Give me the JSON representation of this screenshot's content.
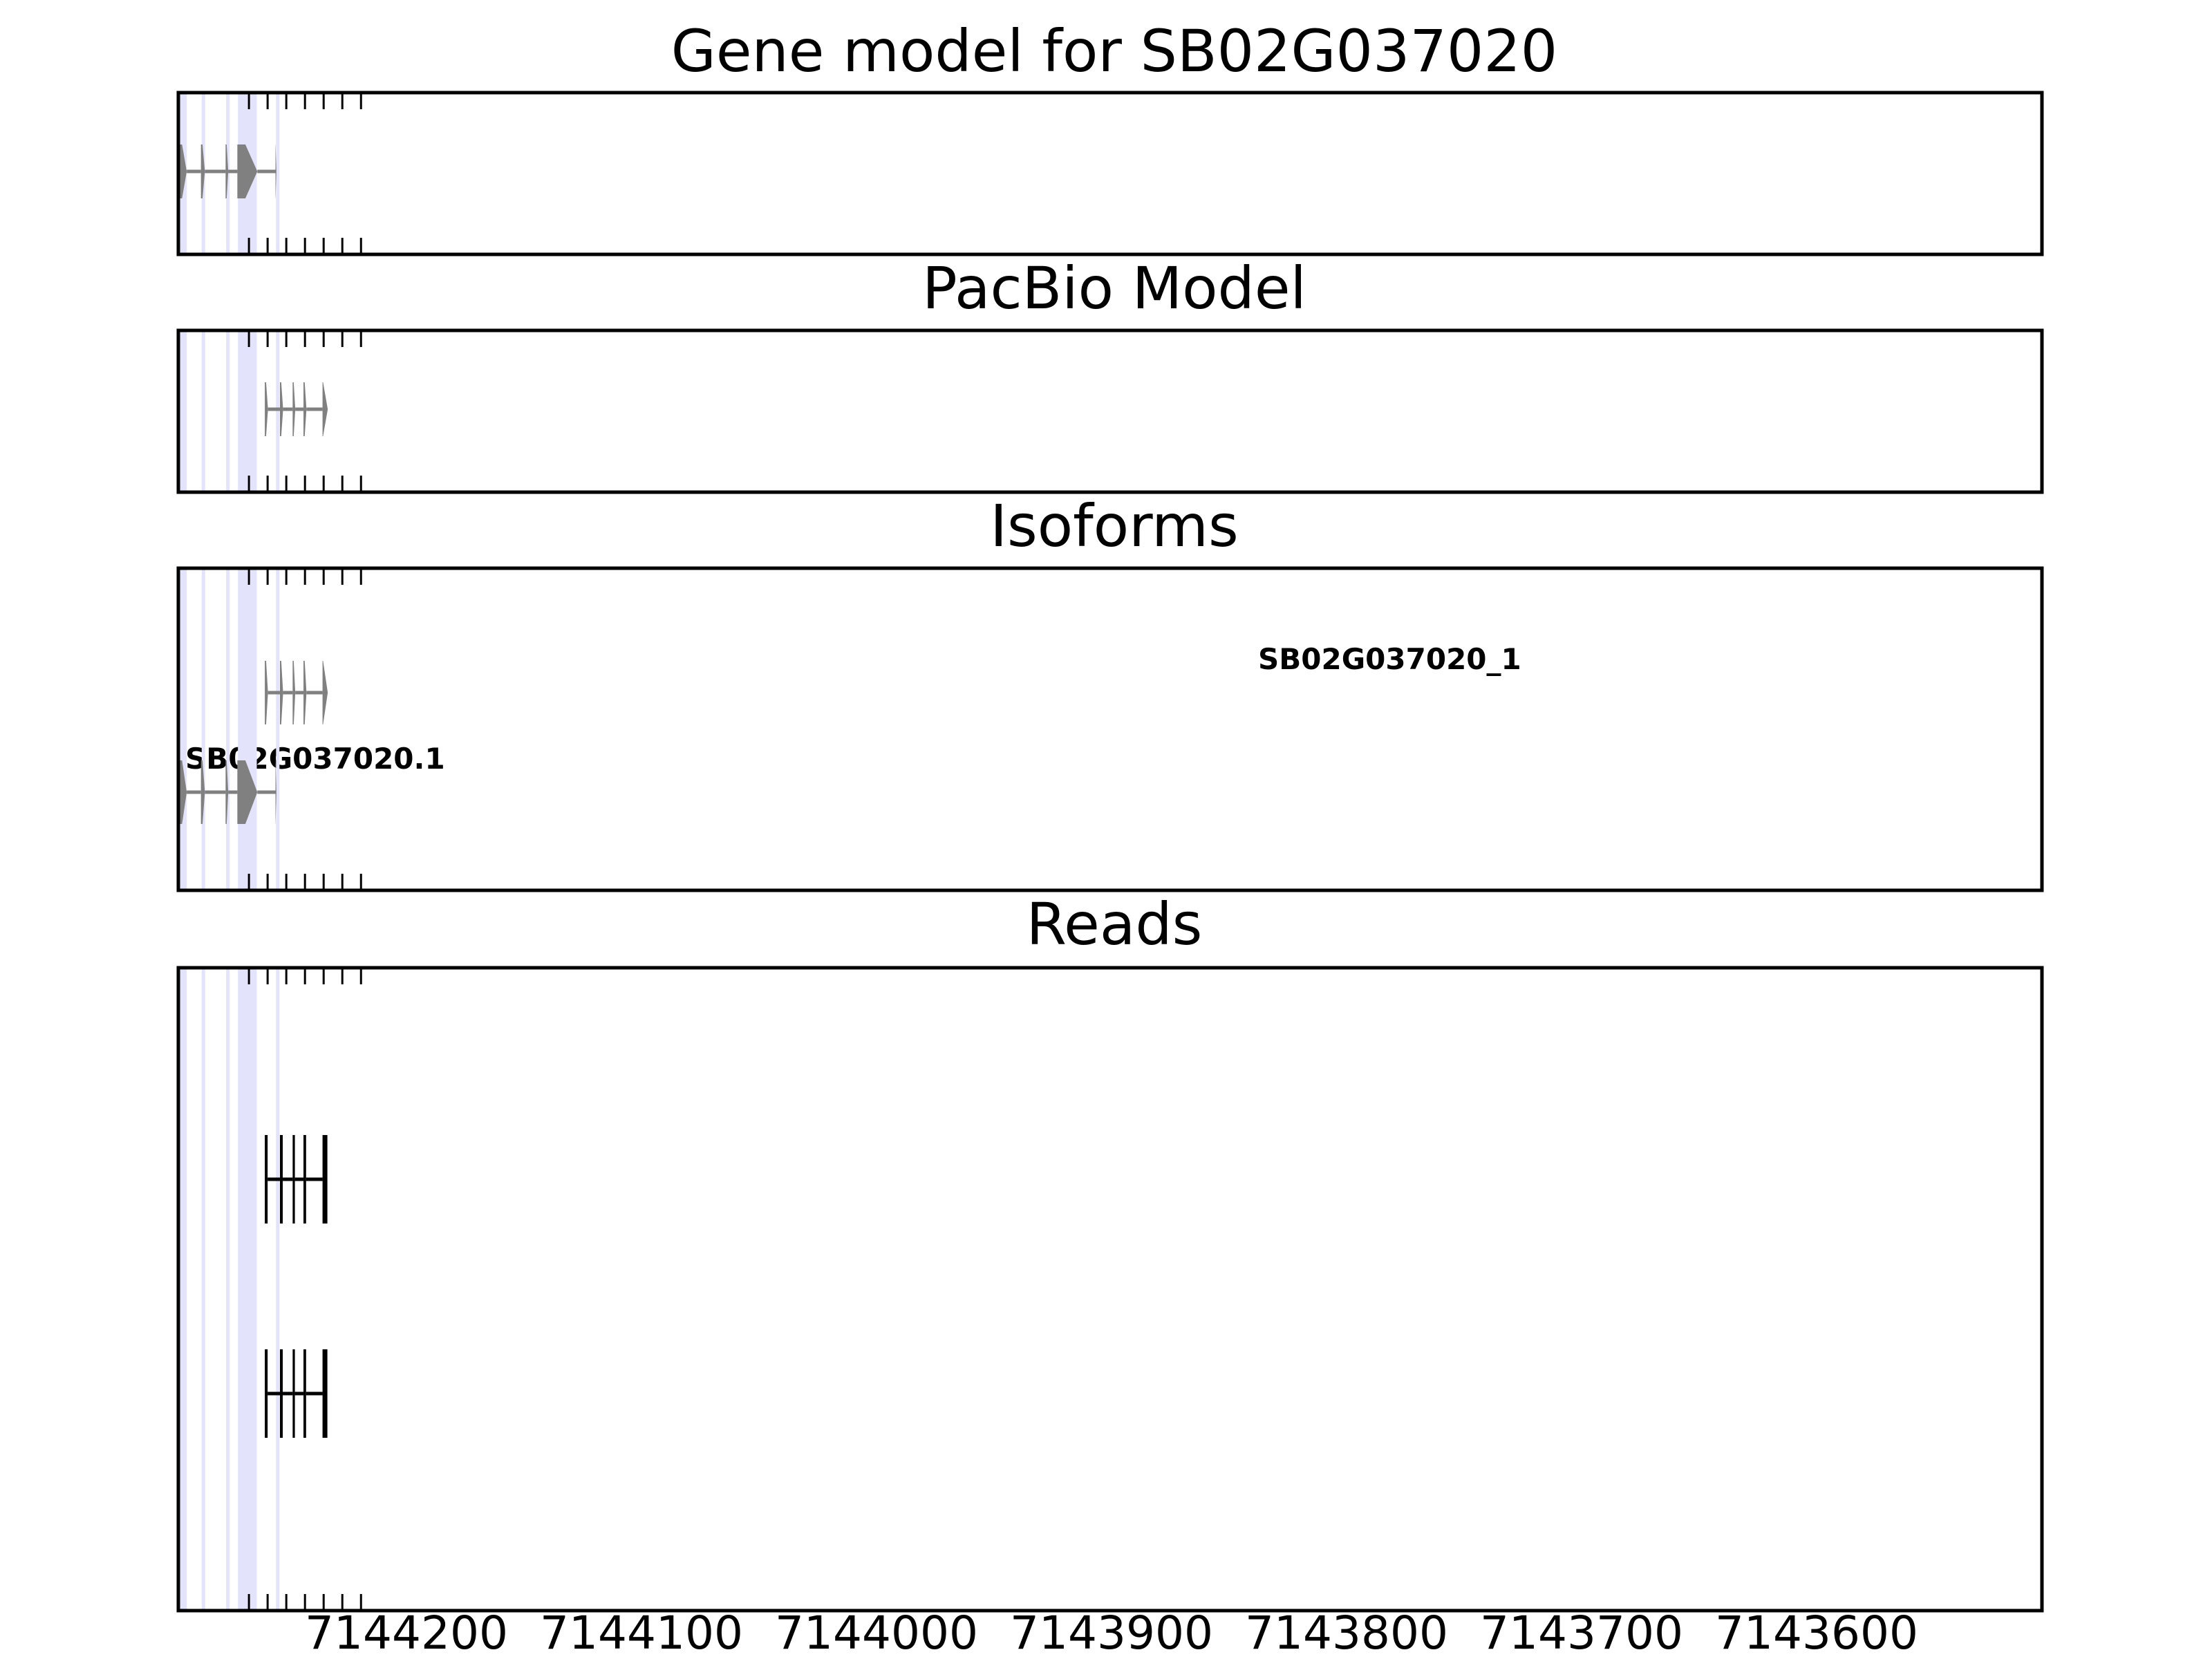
{
  "chart_data": {
    "type": "gene-track",
    "x_reversed": true,
    "xlim": [
      7144578,
      7134600
    ],
    "xticks": [
      7144200,
      7144100,
      7144000,
      7143900,
      7143800,
      7143700,
      7143600
    ],
    "xtick_labels": [
      "7144200",
      "7144100",
      "7144000",
      "7143900",
      "7143800",
      "7143700",
      "7143600"
    ],
    "highlight_color": "#e3e3fc",
    "feature_color": "#808080",
    "read_color": "#000000",
    "highlight_regions": [
      [
        7144570,
        7144533
      ],
      [
        7144453,
        7144436
      ],
      [
        7144322,
        7144311
      ],
      [
        7144259,
        7144158
      ],
      [
        7144055,
        7144054
      ]
    ],
    "panels": [
      {
        "title": "Gene model for SB02G037020",
        "kind": "model",
        "strand": "-",
        "exons": [
          [
            7144575,
            7144533
          ],
          [
            7144457,
            7144436
          ],
          [
            7144325,
            7144311
          ],
          [
            7144262,
            7144155
          ],
          [
            7144058,
            7144053
          ]
        ]
      },
      {
        "title": "PacBio Model",
        "kind": "model",
        "strand": "-",
        "exons": [
          [
            7144115,
            7144098
          ],
          [
            7144034,
            7144017
          ],
          [
            7143966,
            7143952
          ],
          [
            7143908,
            7143892
          ],
          [
            7143806,
            7143778
          ]
        ]
      },
      {
        "title": "Isoforms",
        "kind": "isoforms",
        "strand": "-",
        "isoforms": [
          {
            "label": "SB02G037020_1",
            "exons": [
              [
                7144115,
                7144098
              ],
              [
                7144034,
                7144017
              ],
              [
                7143966,
                7143952
              ],
              [
                7143908,
                7143892
              ],
              [
                7143806,
                7143778
              ]
            ]
          },
          {
            "label": "SB02G037020.1",
            "exons": [
              [
                7144575,
                7144533
              ],
              [
                7144457,
                7144436
              ],
              [
                7144325,
                7144311
              ],
              [
                7144262,
                7144155
              ],
              [
                7144058,
                7144053
              ]
            ]
          }
        ]
      },
      {
        "title": "Reads",
        "kind": "reads",
        "reads": [
          {
            "exons": [
              [
                7144115,
                7144100
              ],
              [
                7144034,
                7144019
              ],
              [
                7143966,
                7143954
              ],
              [
                7143908,
                7143894
              ],
              [
                7143806,
                7143780
              ]
            ]
          },
          {
            "exons": [
              [
                7144115,
                7144100
              ],
              [
                7144034,
                7144019
              ],
              [
                7143966,
                7143954
              ],
              [
                7143908,
                7143894
              ],
              [
                7143806,
                7143780
              ]
            ]
          }
        ]
      }
    ]
  }
}
